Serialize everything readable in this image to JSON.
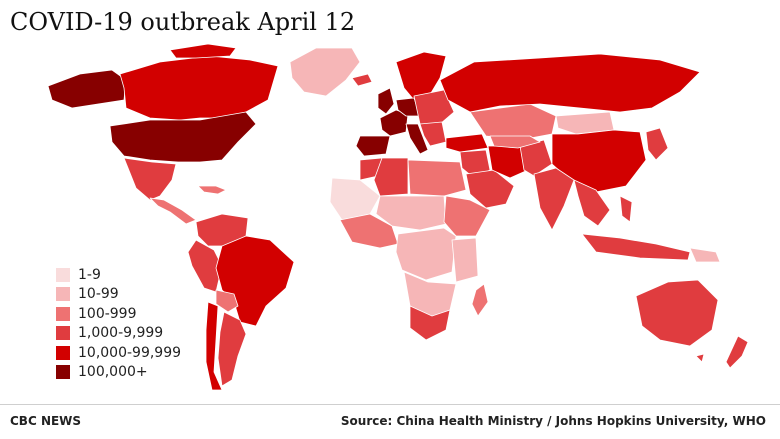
{
  "title": "COVID-19 outbreak April 12",
  "legend": [
    {
      "label": "1-9",
      "color": "#f9dcdc"
    },
    {
      "label": "10-99",
      "color": "#f6b6b7"
    },
    {
      "label": "100-999",
      "color": "#ee7272"
    },
    {
      "label": "1,000-9,999",
      "color": "#e03c3f"
    },
    {
      "label": "10,000-99,999",
      "color": "#d20000"
    },
    {
      "label": "100,000+",
      "color": "#870000"
    }
  ],
  "footer": {
    "brand": "CBC NEWS",
    "source": "Source: China Health Ministry / Johns Hopkins University, WHO"
  }
}
